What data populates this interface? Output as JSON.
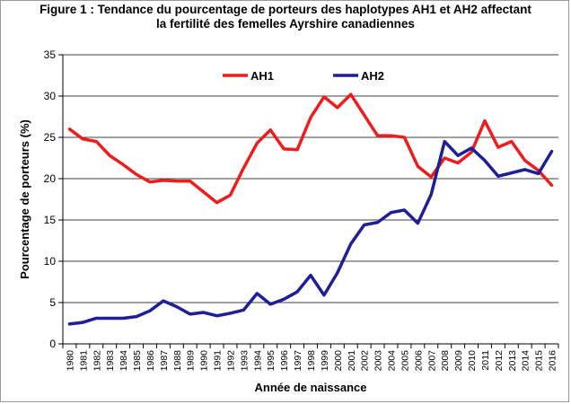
{
  "title_line1": "Figure 1 : Tendance du pourcentage de porteurs des haplotypes AH1 et AH2 affectant",
  "title_line2": "la fertilité des femelles Ayrshire canadiennes",
  "chart_data": {
    "type": "line",
    "title": "Figure 1 : Tendance du pourcentage de porteurs des haplotypes AH1 et AH2 affectant la fertilité des femelles Ayrshire canadiennes",
    "xlabel": "Année de naissance",
    "ylabel": "Pourcentage de porteurs (%)",
    "ylim": [
      0,
      35
    ],
    "yticks": [
      0,
      5,
      10,
      15,
      20,
      25,
      30,
      35
    ],
    "grid": "horizontal",
    "legend_position": "top-left",
    "x": [
      "1980",
      "1981",
      "1982",
      "1983",
      "1984",
      "1985",
      "1986",
      "1987",
      "1988",
      "1989",
      "1990",
      "1991",
      "1992",
      "1993",
      "1994",
      "1995",
      "1996",
      "1997",
      "1998",
      "1999",
      "2000",
      "2001",
      "2002",
      "2003",
      "2004",
      "2005",
      "2006",
      "2007",
      "2008",
      "2009",
      "2010",
      "2011",
      "2012",
      "2013",
      "2014",
      "2015",
      "2016"
    ],
    "series": [
      {
        "name": "AH1",
        "color": "#ee1c1c",
        "values": [
          26.0,
          24.8,
          24.5,
          22.8,
          21.7,
          20.5,
          19.6,
          19.8,
          19.7,
          19.7,
          18.4,
          17.1,
          18.0,
          21.3,
          24.3,
          25.9,
          23.6,
          23.5,
          27.4,
          29.9,
          28.6,
          30.2,
          27.7,
          25.2,
          25.2,
          25.0,
          21.5,
          20.2,
          22.5,
          21.9,
          23.2,
          27.0,
          23.8,
          24.5,
          22.2,
          21.0,
          19.2
        ]
      },
      {
        "name": "AH2",
        "color": "#1e1e96",
        "values": [
          2.4,
          2.6,
          3.1,
          3.1,
          3.1,
          3.3,
          4.0,
          5.2,
          4.5,
          3.6,
          3.8,
          3.4,
          3.7,
          4.1,
          6.1,
          4.8,
          5.4,
          6.3,
          8.3,
          5.9,
          8.6,
          12.1,
          14.4,
          14.7,
          15.9,
          16.2,
          14.6,
          18.1,
          24.5,
          22.8,
          23.7,
          22.2,
          20.3,
          20.7,
          21.1,
          20.6,
          23.3
        ]
      }
    ]
  }
}
